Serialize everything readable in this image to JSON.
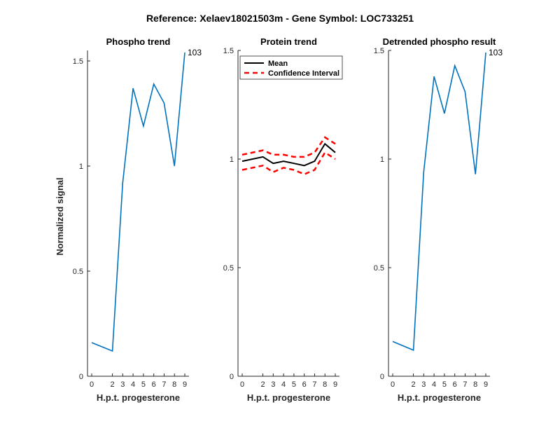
{
  "suptitle": "Reference:  Xelaev18021503m - Gene Symbol:  LOC733251",
  "xlabel": "H.p.t. progesterone",
  "ylabel": "Normalized signal",
  "colors": {
    "series": "#0072BD",
    "mean": "#000000",
    "ci": "#FF0000",
    "axis": "#262626"
  },
  "chart_data": [
    {
      "type": "line",
      "title": "Phospho trend",
      "x": [
        0,
        2,
        3,
        4,
        5,
        6,
        7,
        8,
        9
      ],
      "xticks": [
        "0",
        "2",
        "3",
        "4",
        "5",
        "6",
        "7",
        "8",
        "9"
      ],
      "ylim": [
        0,
        1.55
      ],
      "yticks": [
        "0",
        "0.5",
        "1",
        "1.5"
      ],
      "series": [
        {
          "name": "Phospho",
          "values": [
            0.16,
            0.12,
            0.92,
            1.37,
            1.19,
            1.39,
            1.3,
            1.0,
            1.54
          ]
        }
      ],
      "annotation": "103"
    },
    {
      "type": "line",
      "title": "Protein trend",
      "x": [
        0,
        2,
        3,
        4,
        5,
        6,
        7,
        8,
        9
      ],
      "xticks": [
        "0",
        "2",
        "3",
        "4",
        "5",
        "6",
        "7",
        "8",
        "9"
      ],
      "ylim": [
        0,
        1.5
      ],
      "yticks": [
        "0",
        "0.5",
        "1",
        "1.5"
      ],
      "series": [
        {
          "name": "Mean",
          "values": [
            0.99,
            1.01,
            0.98,
            0.99,
            0.98,
            0.97,
            0.99,
            1.07,
            1.03
          ]
        },
        {
          "name": "CI upper",
          "values": [
            1.02,
            1.04,
            1.02,
            1.02,
            1.01,
            1.01,
            1.03,
            1.1,
            1.07
          ]
        },
        {
          "name": "CI lower",
          "values": [
            0.95,
            0.97,
            0.94,
            0.96,
            0.95,
            0.93,
            0.95,
            1.03,
            1.0
          ]
        }
      ],
      "legend": [
        "Mean",
        "Confidence Interval"
      ],
      "legend_position": "top-right"
    },
    {
      "type": "line",
      "title": "Detrended phospho result",
      "x": [
        0,
        2,
        3,
        4,
        5,
        6,
        7,
        8,
        9
      ],
      "xticks": [
        "0",
        "2",
        "3",
        "4",
        "5",
        "6",
        "7",
        "8",
        "9"
      ],
      "ylim": [
        0,
        1.5
      ],
      "yticks": [
        "0",
        "0.5",
        "1",
        "1.5"
      ],
      "series": [
        {
          "name": "Detrended",
          "values": [
            0.16,
            0.12,
            0.94,
            1.38,
            1.21,
            1.43,
            1.31,
            0.93,
            1.49
          ]
        }
      ],
      "annotation": "103"
    }
  ]
}
